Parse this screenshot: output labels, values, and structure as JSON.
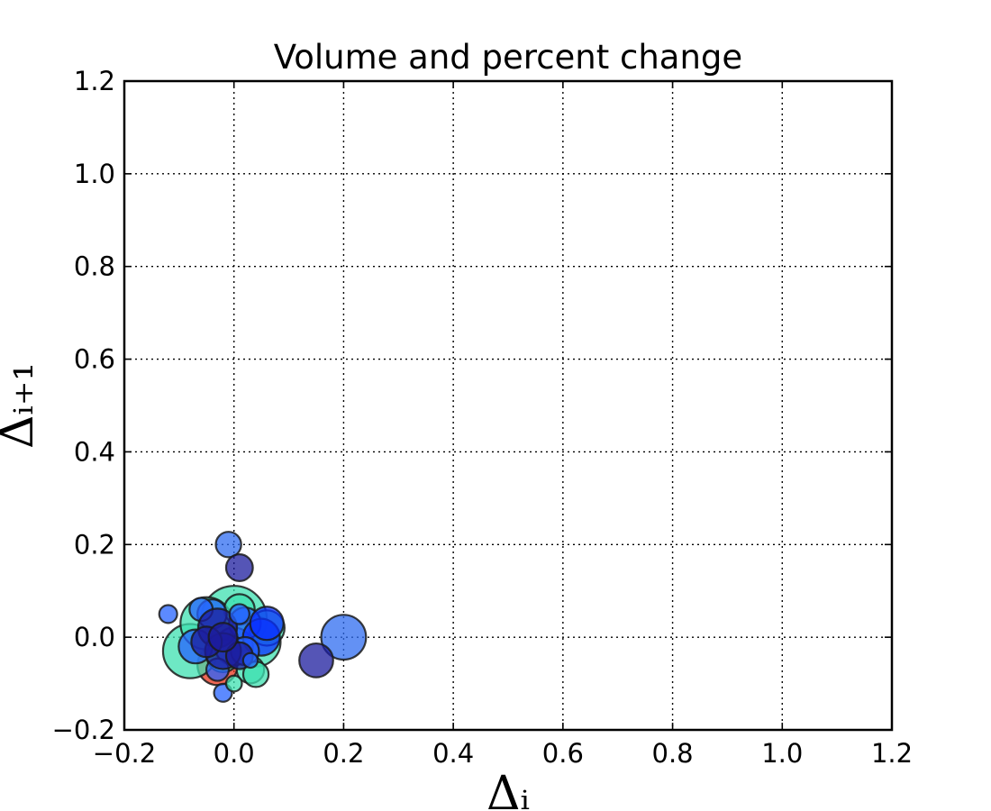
{
  "chart_data": {
    "type": "scatter",
    "title": "Volume and percent change",
    "xlabel": "Δᵢ",
    "ylabel": "Δᵢ₊₁",
    "xlim": [
      -0.2,
      1.2
    ],
    "ylim": [
      -0.2,
      1.2
    ],
    "xticks": [
      "−0.2",
      "0.0",
      "0.2",
      "0.4",
      "0.6",
      "0.8",
      "1.0",
      "1.2"
    ],
    "yticks": [
      "−0.2",
      "0.0",
      "0.2",
      "0.4",
      "0.6",
      "0.8",
      "1.0",
      "1.2"
    ],
    "grid": true,
    "legend": "none",
    "point_opacity": 0.75,
    "points": [
      {
        "x": -0.03,
        "y": -0.06,
        "size": 450,
        "color": "#e8341c"
      },
      {
        "x": 0.0,
        "y": 0.04,
        "size": 1200,
        "color": "#3de0b0"
      },
      {
        "x": -0.08,
        "y": -0.03,
        "size": 820,
        "color": "#3de0b0"
      },
      {
        "x": 0.04,
        "y": -0.01,
        "size": 680,
        "color": "#3de0b0"
      },
      {
        "x": -0.05,
        "y": 0.03,
        "size": 760,
        "color": "#3de0b0"
      },
      {
        "x": 0.03,
        "y": -0.07,
        "size": 210,
        "color": "#3de0b0"
      },
      {
        "x": 0.06,
        "y": 0.02,
        "size": 350,
        "color": "#3de0b0"
      },
      {
        "x": -0.02,
        "y": -0.04,
        "size": 300,
        "color": "#3de0b0"
      },
      {
        "x": 0.01,
        "y": 0.06,
        "size": 260,
        "color": "#3de0b0"
      },
      {
        "x": -0.07,
        "y": -0.02,
        "size": 320,
        "color": "#2563ff"
      },
      {
        "x": 0.0,
        "y": -0.02,
        "size": 400,
        "color": "#2563ff"
      },
      {
        "x": 0.02,
        "y": 0.03,
        "size": 280,
        "color": "#2563ff"
      },
      {
        "x": 0.05,
        "y": 0.0,
        "size": 380,
        "color": "#0a30ff"
      },
      {
        "x": -0.04,
        "y": 0.05,
        "size": 240,
        "color": "#2563ff"
      },
      {
        "x": 0.02,
        "y": -0.03,
        "size": 220,
        "color": "#2563ff"
      },
      {
        "x": -0.06,
        "y": 0.06,
        "size": 150,
        "color": "#2563ff"
      },
      {
        "x": -0.12,
        "y": 0.05,
        "size": 90,
        "color": "#2563ff"
      },
      {
        "x": -0.01,
        "y": 0.2,
        "size": 180,
        "color": "#2f6cf0"
      },
      {
        "x": 0.01,
        "y": 0.15,
        "size": 200,
        "color": "#1c1c9e"
      },
      {
        "x": 0.2,
        "y": 0.0,
        "size": 560,
        "color": "#2f6cf0"
      },
      {
        "x": 0.15,
        "y": -0.05,
        "size": 320,
        "color": "#1c1c9e"
      },
      {
        "x": 0.06,
        "y": 0.03,
        "size": 310,
        "color": "#0a30ff"
      },
      {
        "x": -0.02,
        "y": -0.12,
        "size": 90,
        "color": "#2563ff"
      },
      {
        "x": -0.03,
        "y": -0.07,
        "size": 140,
        "color": "#2563ff"
      },
      {
        "x": 0.0,
        "y": -0.1,
        "size": 70,
        "color": "#3de0b0"
      },
      {
        "x": 0.04,
        "y": -0.08,
        "size": 180,
        "color": "#3de0b0"
      },
      {
        "x": -0.03,
        "y": 0.02,
        "size": 420,
        "color": "#1c1c9e"
      },
      {
        "x": -0.02,
        "y": -0.03,
        "size": 360,
        "color": "#1c1c9e"
      },
      {
        "x": 0.01,
        "y": -0.04,
        "size": 200,
        "color": "#1c1c9e"
      },
      {
        "x": -0.05,
        "y": -0.01,
        "size": 260,
        "color": "#1c1c9e"
      },
      {
        "x": 0.03,
        "y": -0.05,
        "size": 60,
        "color": "#2563ff"
      },
      {
        "x": -0.02,
        "y": 0.0,
        "size": 230,
        "color": "#1c1c9e"
      },
      {
        "x": 0.01,
        "y": 0.05,
        "size": 110,
        "color": "#2563ff"
      }
    ]
  }
}
